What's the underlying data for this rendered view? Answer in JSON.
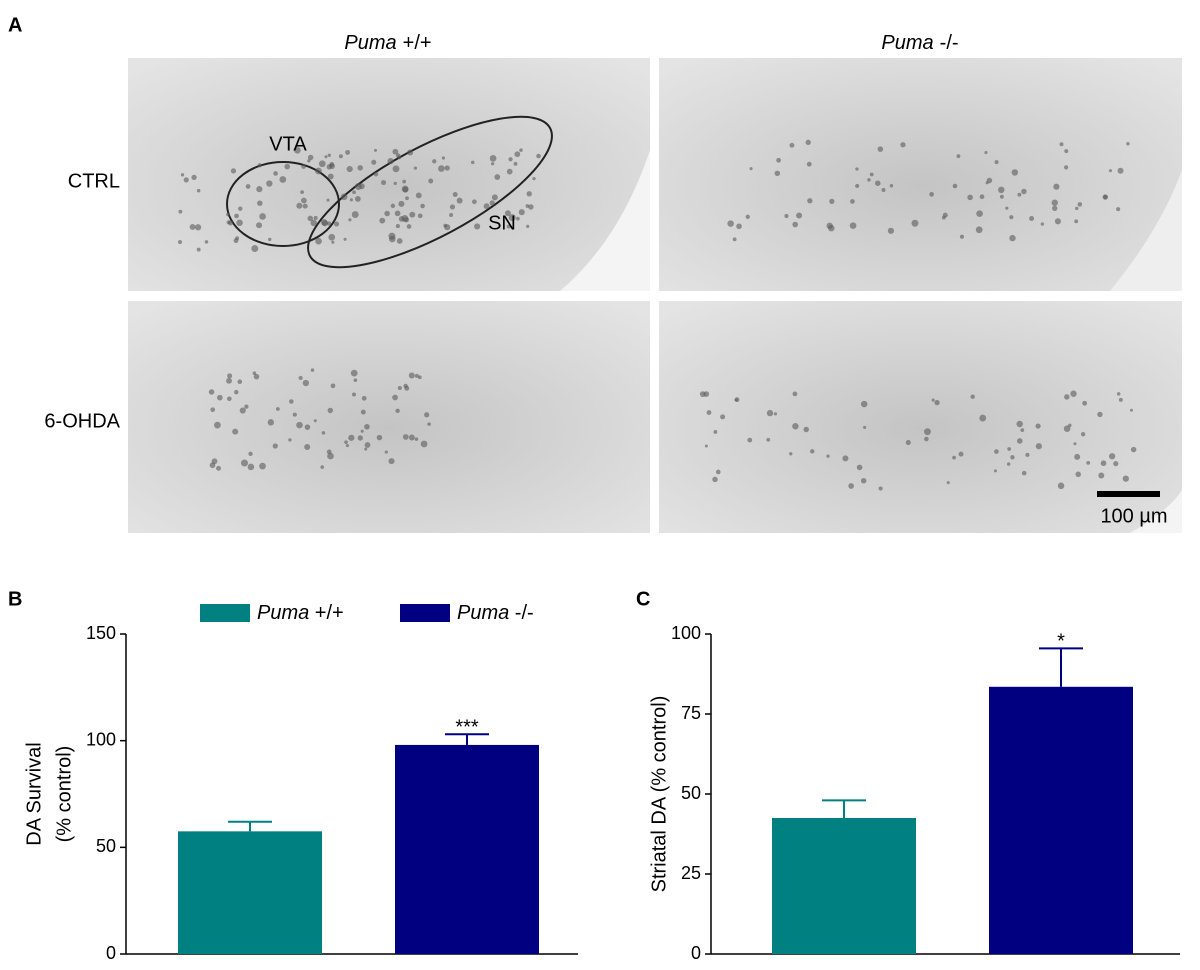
{
  "panel_labels": [
    "A",
    "B",
    "C"
  ],
  "micrographs": {
    "columns": [
      {
        "italic": "Puma",
        "text": "+/+"
      },
      {
        "italic": "Puma",
        "text": "-/-"
      }
    ],
    "rows": [
      "CTRL",
      "6-OHDA"
    ],
    "annotations": {
      "vta": "VTA",
      "sn": "SN",
      "scale_bar": "100 µm"
    }
  },
  "chart_data": [
    {
      "type": "bar",
      "ylabel": [
        "DA Survival",
        "(% control)"
      ],
      "ylim": [
        0,
        150
      ],
      "yticks": [
        0,
        50,
        100,
        150
      ],
      "legend": true,
      "series": [
        {
          "name": "Puma +/+",
          "color": "#008080",
          "values": [
            57.5
          ],
          "errors": [
            4.5
          ]
        },
        {
          "name": "Puma -/-",
          "color": "#000080",
          "values": [
            98
          ],
          "errors": [
            5
          ],
          "significance": "***"
        }
      ]
    },
    {
      "type": "bar",
      "ylabel": [
        "Striatal DA (% control)"
      ],
      "ylim": [
        0,
        100
      ],
      "yticks": [
        0,
        25,
        50,
        75,
        100
      ],
      "legend": false,
      "series": [
        {
          "color": "#008080",
          "values": [
            42.5
          ],
          "errors": [
            5.5
          ]
        },
        {
          "color": "#000080",
          "values": [
            83.5
          ],
          "errors": [
            12
          ],
          "significance": "*"
        }
      ]
    }
  ]
}
